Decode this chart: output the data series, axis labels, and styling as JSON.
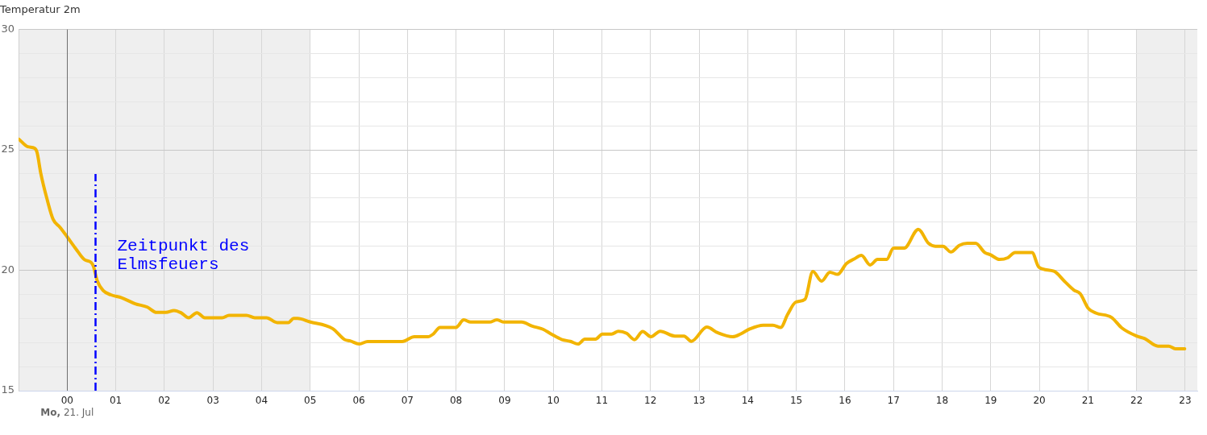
{
  "chart_data": {
    "type": "line",
    "title": "Temperatur 2m",
    "x": [
      -0.99,
      -0.81,
      -0.67,
      -0.62,
      -0.54,
      -0.42,
      -0.29,
      -0.15,
      0,
      0.18,
      0.35,
      0.49,
      0.54,
      0.62,
      0.74,
      0.9,
      1.12,
      1.4,
      1.65,
      1.84,
      2.03,
      2.2,
      2.34,
      2.5,
      2.67,
      2.83,
      3.19,
      3.33,
      3.69,
      3.86,
      4.1,
      4.32,
      4.55,
      4.66,
      4.74,
      4.99,
      5.46,
      5.71,
      5.82,
      6.01,
      6.18,
      6.89,
      7.14,
      7.42,
      7.53,
      7.67,
      8.0,
      8.16,
      8.3,
      8.69,
      8.84,
      8.99,
      9.35,
      9.57,
      9.79,
      9.96,
      10.18,
      10.35,
      10.51,
      10.65,
      10.87,
      11.01,
      11.2,
      11.34,
      11.51,
      11.67,
      11.84,
      12.01,
      12.2,
      12.5,
      12.69,
      12.84,
      13.16,
      13.38,
      13.69,
      13.85,
      14.05,
      14.32,
      14.52,
      14.68,
      14.82,
      14.99,
      15.18,
      15.34,
      15.52,
      15.69,
      15.85,
      16.03,
      16.19,
      16.34,
      16.52,
      16.67,
      16.86,
      17.0,
      17.22,
      17.51,
      17.72,
      17.86,
      18.02,
      18.18,
      18.35,
      18.52,
      18.69,
      18.88,
      18.99,
      19.18,
      19.35,
      19.5,
      19.85,
      19.99,
      20.3,
      20.51,
      20.71,
      20.84,
      21.01,
      21.17,
      21.48,
      21.7,
      22.0,
      22.17,
      22.44,
      22.66,
      22.8,
      22.99
    ],
    "values": [
      25.44,
      25.13,
      25.07,
      24.9,
      24.0,
      23.0,
      22.12,
      21.79,
      21.39,
      20.89,
      20.45,
      20.33,
      20.17,
      19.56,
      19.16,
      18.98,
      18.86,
      18.61,
      18.47,
      18.25,
      18.25,
      18.33,
      18.24,
      18.03,
      18.24,
      18.03,
      18.03,
      18.13,
      18.13,
      18.03,
      18.03,
      17.83,
      17.83,
      18.0,
      18.0,
      17.86,
      17.58,
      17.12,
      17.07,
      16.94,
      17.04,
      17.04,
      17.24,
      17.24,
      17.35,
      17.63,
      17.63,
      17.94,
      17.85,
      17.85,
      17.94,
      17.85,
      17.85,
      17.68,
      17.55,
      17.35,
      17.12,
      17.05,
      16.94,
      17.14,
      17.14,
      17.35,
      17.35,
      17.47,
      17.38,
      17.12,
      17.46,
      17.24,
      17.47,
      17.27,
      17.27,
      17.05,
      17.64,
      17.41,
      17.24,
      17.35,
      17.57,
      17.72,
      17.72,
      17.63,
      18.16,
      18.68,
      18.8,
      19.95,
      19.55,
      19.92,
      19.83,
      20.28,
      20.47,
      20.62,
      20.22,
      20.45,
      20.45,
      20.92,
      20.92,
      21.7,
      21.12,
      21.0,
      21.0,
      20.76,
      21.03,
      21.12,
      21.12,
      20.73,
      20.65,
      20.45,
      20.52,
      20.74,
      20.74,
      20.13,
      19.96,
      19.56,
      19.18,
      19.03,
      18.41,
      18.22,
      18.05,
      17.6,
      17.27,
      17.16,
      16.85,
      16.85,
      16.74,
      16.74
    ],
    "color": "#f2b400",
    "marker": "none",
    "xlim": [
      -1,
      23.25
    ],
    "xticks": [
      {
        "value": 0,
        "label": "00"
      },
      {
        "value": 1,
        "label": "01"
      },
      {
        "value": 2,
        "label": "02"
      },
      {
        "value": 3,
        "label": "03"
      },
      {
        "value": 4,
        "label": "04"
      },
      {
        "value": 5,
        "label": "05"
      },
      {
        "value": 6,
        "label": "06"
      },
      {
        "value": 7,
        "label": "07"
      },
      {
        "value": 8,
        "label": "08"
      },
      {
        "value": 9,
        "label": "09"
      },
      10,
      11,
      12,
      13,
      14,
      15,
      16,
      17,
      18,
      19,
      20,
      21,
      22,
      23
    ],
    "ylim": [
      15,
      30
    ],
    "yticks": [
      15,
      {
        "value": 16,
        "label": null
      },
      {
        "value": 17,
        "label": null
      },
      {
        "value": 18,
        "label": null
      },
      {
        "value": 19,
        "label": null
      },
      20,
      {
        "value": 21,
        "label": null
      },
      {
        "value": 22,
        "label": null
      },
      {
        "value": 23,
        "label": null
      },
      {
        "value": 24,
        "label": null
      },
      25,
      {
        "value": 26,
        "label": null
      },
      {
        "value": 27,
        "label": null
      },
      {
        "value": 28,
        "label": null
      },
      {
        "value": 29,
        "label": null
      },
      30
    ],
    "grid": true,
    "bands": [
      {
        "axis": "x",
        "from": -1,
        "to": 5,
        "color": "#efefef"
      },
      {
        "axis": "x",
        "from": 22,
        "to": 23.25,
        "color": "#efefef"
      }
    ],
    "ref_lines": [
      {
        "axis": "x",
        "value": 0,
        "color": "#707070",
        "line_style": "solid"
      },
      {
        "axis": "x",
        "value": 0.57,
        "label": "Zeitpunkt des Elmsfeuers",
        "color": "#0000ff",
        "line_style": "dashdot"
      }
    ],
    "annotations": [
      "Mo, 21. Jul"
    ]
  }
}
